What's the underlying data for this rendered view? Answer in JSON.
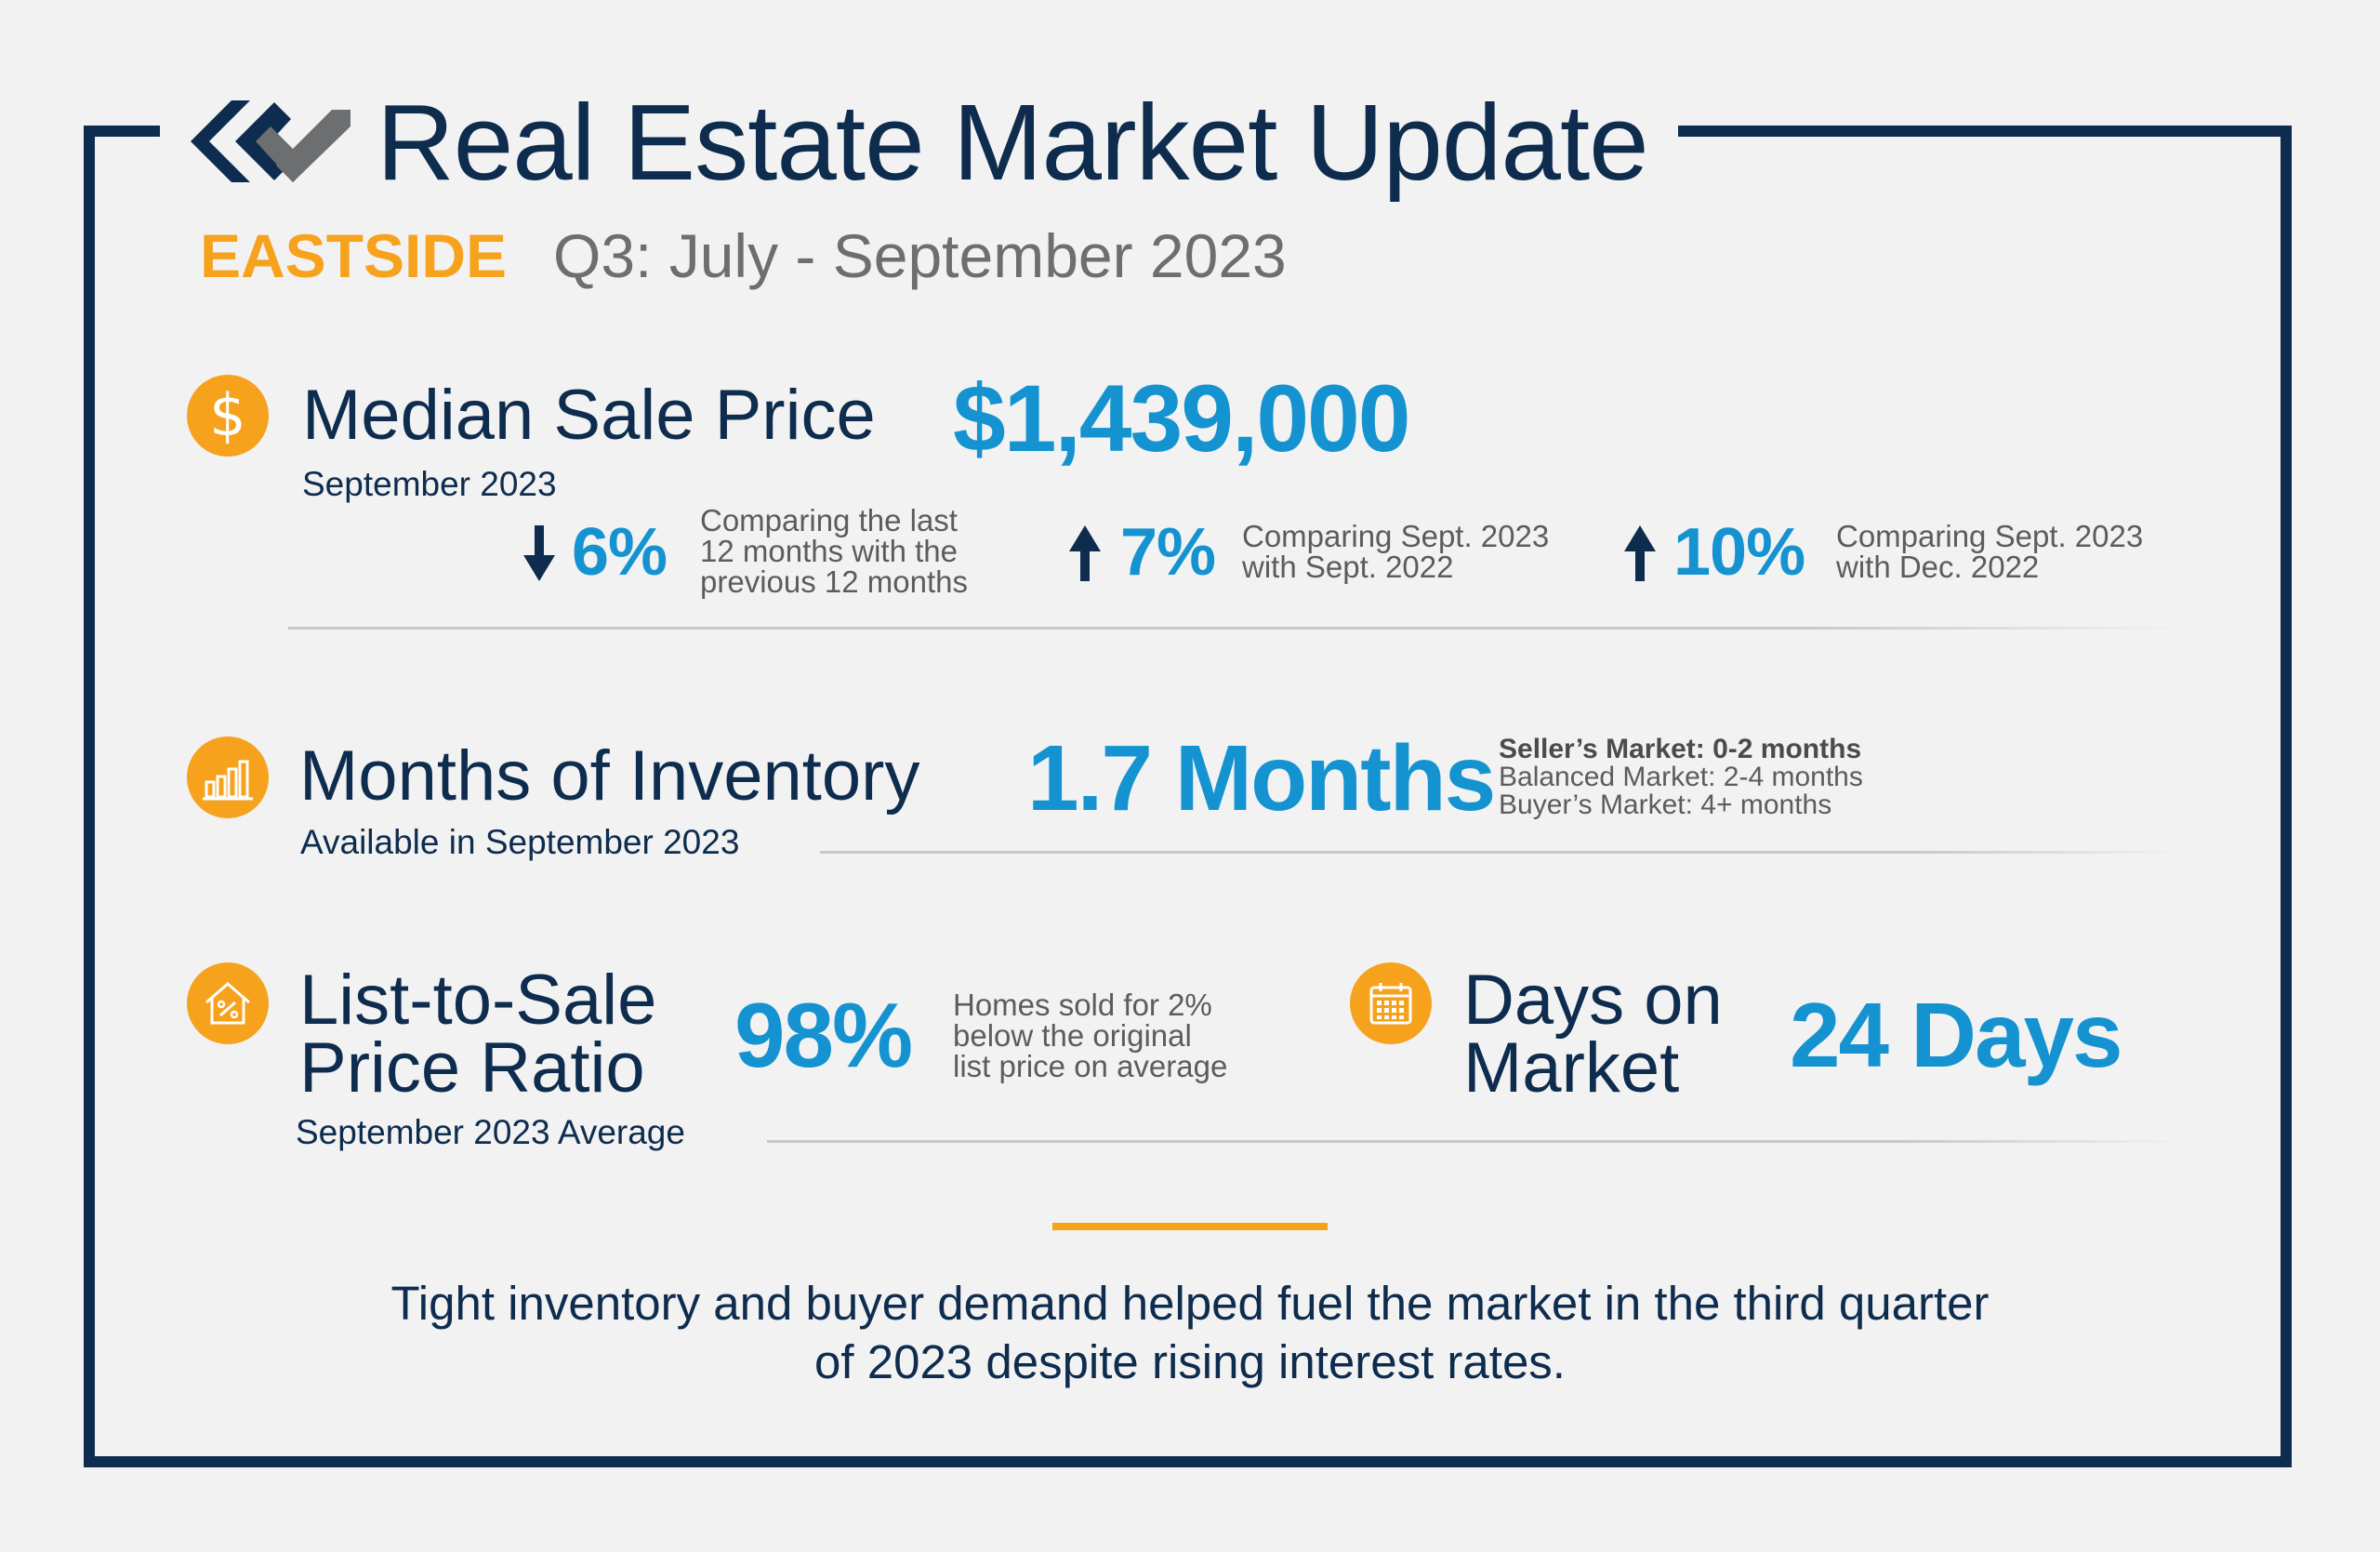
{
  "header": {
    "title": "Real Estate Market Update",
    "region": "EASTSIDE",
    "period": "Q3: July - September 2023"
  },
  "icons": {
    "logo": "windermere-logo-icon",
    "median_price": "dollar-icon",
    "inventory": "bar-chart-icon",
    "list_to_sale": "house-percent-icon",
    "days_on_market": "calendar-icon"
  },
  "colors": {
    "navy": "#0d2c4f",
    "orange": "#f6a21d",
    "blue": "#1593d0",
    "gray": "#6d6e70"
  },
  "median_sale_price": {
    "title": "Median Sale Price",
    "subtitle": "September 2023",
    "value": "$1,439,000",
    "icon_glyph": "$",
    "changes": [
      {
        "direction": "down",
        "value": "6%",
        "note_lines": [
          "Comparing the last",
          "12 months with the",
          "previous 12 months"
        ]
      },
      {
        "direction": "up",
        "value": "7%",
        "note_lines": [
          "Comparing Sept. 2023",
          "with Sept. 2022"
        ]
      },
      {
        "direction": "up",
        "value": "10%",
        "note_lines": [
          "Comparing Sept. 2023",
          "with Dec. 2022"
        ]
      }
    ]
  },
  "months_of_inventory": {
    "title": "Months of Inventory",
    "subtitle": "Available in September 2023",
    "value": "1.7 Months",
    "legend": {
      "sellers": "Seller’s Market: 0-2 months",
      "balanced": "Balanced Market: 2-4 months",
      "buyers": "Buyer’s Market: 4+ months"
    }
  },
  "list_to_sale": {
    "title_line1": "List-to-Sale",
    "title_line2": "Price Ratio",
    "subtitle": "September 2023 Average",
    "value": "98%",
    "note_lines": [
      "Homes sold for 2%",
      "below the original",
      "list price on average"
    ]
  },
  "days_on_market": {
    "title_line1": "Days on",
    "title_line2": "Market",
    "value": "24 Days"
  },
  "summary": {
    "line1": "Tight inventory and buyer demand helped fuel the market in the third quarter",
    "line2": "of 2023 despite rising interest rates."
  }
}
